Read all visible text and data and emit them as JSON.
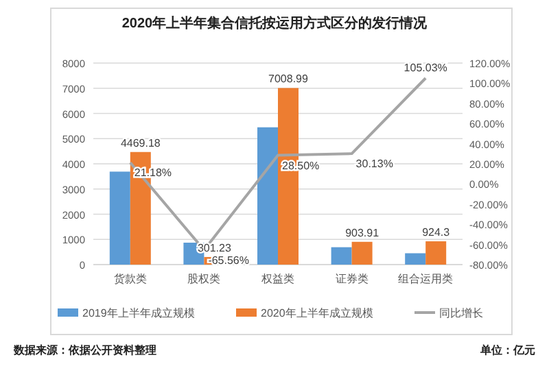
{
  "chart_data": {
    "type": "bar",
    "title": "2020年上半年集合信托按运用方式区分的发行情况",
    "categories": [
      "货款类",
      "股权类",
      "权益类",
      "证券类",
      "组合运用类"
    ],
    "series": [
      {
        "name": "2019年上半年成立规模",
        "color": "#5b9bd5",
        "values": [
          3690,
          870,
          5450,
          690,
          450
        ]
      },
      {
        "name": "2020年上半年成立规模",
        "color": "#ed7d31",
        "values": [
          4469.18,
          301.23,
          7008.99,
          903.91,
          924.3
        ],
        "value_labels": [
          "4469.18",
          "301.23",
          "7008.99",
          "903.91",
          "924.3"
        ]
      },
      {
        "name": "同比增长",
        "type": "line",
        "axis": "y2",
        "color": "#a5a5a5",
        "values": [
          21.18,
          -65.56,
          28.5,
          30.13,
          105.03
        ],
        "value_labels": [
          "21.18%",
          "-65.56%",
          "28.50%",
          "30.13%",
          "105.03%"
        ]
      }
    ],
    "ylim": [
      0,
      8000
    ],
    "yticks": [
      0,
      1000,
      2000,
      3000,
      4000,
      5000,
      6000,
      7000,
      8000
    ],
    "y2lim": [
      -80,
      120
    ],
    "y2ticks": [
      {
        "value": -80,
        "label": "-80.00%"
      },
      {
        "value": -60,
        "label": "-60.00%"
      },
      {
        "value": -40,
        "label": "-40.00%"
      },
      {
        "value": -20,
        "label": "-20.00%"
      },
      {
        "value": 0,
        "label": "0.00%"
      },
      {
        "value": 20,
        "label": "20.00%"
      },
      {
        "value": 40,
        "label": "40.00%"
      },
      {
        "value": 60,
        "label": "60.00%"
      },
      {
        "value": 80,
        "label": "80.00%"
      },
      {
        "value": 100,
        "label": "100.00%"
      },
      {
        "value": 120,
        "label": "120.00%"
      }
    ],
    "grid": "y",
    "legend": "bottom",
    "annotations": [
      "数据来源：依据公开资料整理",
      "单位：亿元"
    ]
  }
}
